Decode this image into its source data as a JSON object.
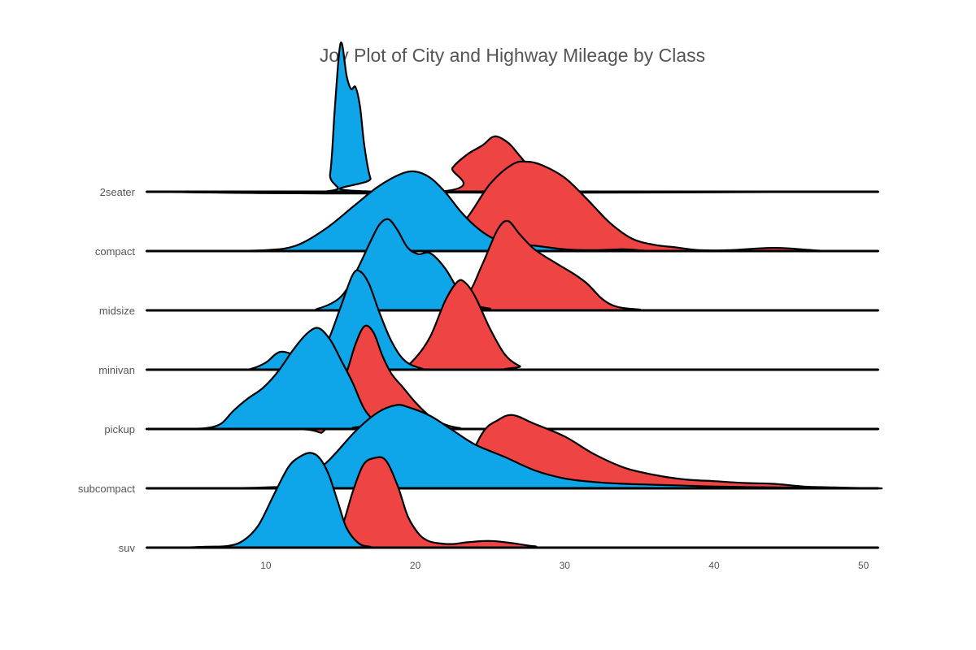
{
  "chart_data": {
    "type": "area",
    "title": "Joy Plot of City and Highway Mileage by Class",
    "xlabel": "",
    "ylabel": "",
    "xlim": [
      2,
      51
    ],
    "x_ticks": [
      10,
      20,
      30,
      40,
      50
    ],
    "grid": false,
    "legend": "none",
    "colors": {
      "city": "#0ea5e9",
      "highway": "#ef4444",
      "outline": "#000000"
    },
    "categories": [
      "2seater",
      "compact",
      "midsize",
      "minivan",
      "pickup",
      "subcompact",
      "suv"
    ],
    "series": [
      {
        "class": "2seater",
        "city": [
          [
            13.8,
            0
          ],
          [
            14.3,
            0.2
          ],
          [
            14.6,
            0.9
          ],
          [
            14.9,
            1.55
          ],
          [
            15.1,
            1.65
          ],
          [
            15.4,
            1.3
          ],
          [
            15.7,
            1.15
          ],
          [
            16.0,
            1.17
          ],
          [
            16.3,
            0.95
          ],
          [
            16.6,
            0.5
          ],
          [
            17.0,
            0.15
          ],
          [
            17.6,
            0
          ]
        ],
        "highway": [
          [
            21.5,
            0
          ],
          [
            22.5,
            0.27
          ],
          [
            23.5,
            0.42
          ],
          [
            24.5,
            0.52
          ],
          [
            25.3,
            0.62
          ],
          [
            26.2,
            0.55
          ],
          [
            27.0,
            0.4
          ],
          [
            28.0,
            0.2
          ],
          [
            29.0,
            0.06
          ],
          [
            30.0,
            0
          ]
        ]
      },
      {
        "class": "compact",
        "city": [
          [
            7.0,
            0
          ],
          [
            10.0,
            0.01
          ],
          [
            12.0,
            0.06
          ],
          [
            14.0,
            0.25
          ],
          [
            16.0,
            0.52
          ],
          [
            17.5,
            0.72
          ],
          [
            19.0,
            0.86
          ],
          [
            20.0,
            0.89
          ],
          [
            21.0,
            0.82
          ],
          [
            22.0,
            0.66
          ],
          [
            23.0,
            0.45
          ],
          [
            24.0,
            0.28
          ],
          [
            25.0,
            0.16
          ],
          [
            26.0,
            0.1
          ],
          [
            28.0,
            0.06
          ],
          [
            30.0,
            0.02
          ],
          [
            32.0,
            0.01
          ],
          [
            34.0,
            0.02
          ],
          [
            36.0,
            0.0
          ],
          [
            40.0,
            0
          ]
        ],
        "highway": [
          [
            18.0,
            0
          ],
          [
            20.0,
            0.02
          ],
          [
            22.0,
            0.12
          ],
          [
            23.5,
            0.38
          ],
          [
            25.0,
            0.75
          ],
          [
            26.5,
            0.97
          ],
          [
            27.5,
            1.0
          ],
          [
            28.5,
            0.96
          ],
          [
            30.0,
            0.82
          ],
          [
            31.5,
            0.58
          ],
          [
            33.0,
            0.32
          ],
          [
            34.5,
            0.14
          ],
          [
            36.0,
            0.07
          ],
          [
            37.5,
            0.04
          ],
          [
            39.0,
            0.01
          ],
          [
            41.0,
            0.01
          ],
          [
            43.0,
            0.03
          ],
          [
            44.0,
            0.035
          ],
          [
            45.0,
            0.03
          ],
          [
            47.0,
            0.005
          ],
          [
            48.0,
            0
          ]
        ]
      },
      {
        "class": "midsize",
        "city": [
          [
            12.0,
            0
          ],
          [
            13.5,
            0.02
          ],
          [
            15.0,
            0.15
          ],
          [
            16.0,
            0.42
          ],
          [
            17.0,
            0.77
          ],
          [
            17.6,
            0.96
          ],
          [
            18.2,
            1.02
          ],
          [
            18.8,
            0.9
          ],
          [
            19.5,
            0.7
          ],
          [
            20.2,
            0.63
          ],
          [
            21.0,
            0.64
          ],
          [
            22.0,
            0.47
          ],
          [
            23.0,
            0.2
          ],
          [
            24.0,
            0.06
          ],
          [
            25.0,
            0.02
          ],
          [
            26.0,
            0
          ]
        ],
        "highway": [
          [
            20.0,
            0
          ],
          [
            22.0,
            0.02
          ],
          [
            23.5,
            0.18
          ],
          [
            24.5,
            0.52
          ],
          [
            25.5,
            0.9
          ],
          [
            26.2,
            1.0
          ],
          [
            27.0,
            0.85
          ],
          [
            28.0,
            0.68
          ],
          [
            29.5,
            0.52
          ],
          [
            30.5,
            0.42
          ],
          [
            31.5,
            0.3
          ],
          [
            32.5,
            0.13
          ],
          [
            33.5,
            0.04
          ],
          [
            35.0,
            0.01
          ],
          [
            36.0,
            0
          ]
        ]
      },
      {
        "class": "minivan",
        "city": [
          [
            8.0,
            0
          ],
          [
            9.0,
            0.01
          ],
          [
            10.0,
            0.08
          ],
          [
            10.7,
            0.18
          ],
          [
            11.2,
            0.2
          ],
          [
            12.0,
            0.16
          ],
          [
            12.7,
            0.12
          ],
          [
            13.5,
            0.14
          ],
          [
            14.2,
            0.34
          ],
          [
            15.0,
            0.7
          ],
          [
            15.8,
            1.06
          ],
          [
            16.3,
            1.1
          ],
          [
            16.9,
            0.96
          ],
          [
            17.6,
            0.64
          ],
          [
            18.4,
            0.32
          ],
          [
            19.3,
            0.1
          ],
          [
            20.5,
            0.01
          ],
          [
            21.5,
            0
          ]
        ],
        "highway": [
          [
            17.0,
            0
          ],
          [
            19.0,
            0.01
          ],
          [
            20.0,
            0.13
          ],
          [
            21.0,
            0.37
          ],
          [
            22.0,
            0.77
          ],
          [
            22.8,
            0.98
          ],
          [
            23.3,
            0.98
          ],
          [
            24.0,
            0.82
          ],
          [
            25.0,
            0.46
          ],
          [
            26.0,
            0.17
          ],
          [
            27.0,
            0.04
          ],
          [
            28.0,
            0
          ]
        ]
      },
      {
        "class": "pickup",
        "city": [
          [
            4.5,
            0
          ],
          [
            6.0,
            0.01
          ],
          [
            7.0,
            0.06
          ],
          [
            7.8,
            0.2
          ],
          [
            8.7,
            0.33
          ],
          [
            9.8,
            0.46
          ],
          [
            10.8,
            0.64
          ],
          [
            11.8,
            0.88
          ],
          [
            12.7,
            1.06
          ],
          [
            13.5,
            1.13
          ],
          [
            14.3,
            1.0
          ],
          [
            15.0,
            0.78
          ],
          [
            15.8,
            0.52
          ],
          [
            16.6,
            0.22
          ],
          [
            17.5,
            0.06
          ],
          [
            18.5,
            0
          ]
        ],
        "highway": [
          [
            12.0,
            0
          ],
          [
            14.0,
            0.0
          ],
          [
            15.3,
            0.58
          ],
          [
            16.0,
            0.95
          ],
          [
            16.6,
            1.15
          ],
          [
            17.2,
            1.08
          ],
          [
            17.8,
            0.82
          ],
          [
            18.4,
            0.62
          ],
          [
            19.2,
            0.46
          ],
          [
            20.0,
            0.3
          ],
          [
            21.0,
            0.14
          ],
          [
            22.0,
            0.05
          ],
          [
            23.0,
            0.01
          ],
          [
            24.0,
            0
          ]
        ]
      },
      {
        "class": "subcompact",
        "city": [
          [
            6.0,
            0
          ],
          [
            10.0,
            0.01
          ],
          [
            12.0,
            0.05
          ],
          [
            14.0,
            0.28
          ],
          [
            16.0,
            0.64
          ],
          [
            17.5,
            0.85
          ],
          [
            18.7,
            0.93
          ],
          [
            19.5,
            0.91
          ],
          [
            21.0,
            0.81
          ],
          [
            22.5,
            0.65
          ],
          [
            24.0,
            0.49
          ],
          [
            26.0,
            0.35
          ],
          [
            28.0,
            0.2
          ],
          [
            30.0,
            0.11
          ],
          [
            32.0,
            0.07
          ],
          [
            34.0,
            0.05
          ],
          [
            36.0,
            0.04
          ],
          [
            38.0,
            0.03
          ],
          [
            40.0,
            0.02
          ],
          [
            44.0,
            0.01
          ],
          [
            48.0,
            0.005
          ],
          [
            51.0,
            0
          ]
        ],
        "highway": [
          [
            20.0,
            0
          ],
          [
            21.0,
            0.03
          ],
          [
            22.0,
            0.07
          ],
          [
            23.0,
            0.14
          ],
          [
            24.5,
            0.62
          ],
          [
            25.5,
            0.76
          ],
          [
            26.5,
            0.82
          ],
          [
            28.0,
            0.72
          ],
          [
            30.0,
            0.58
          ],
          [
            32.0,
            0.38
          ],
          [
            34.0,
            0.23
          ],
          [
            36.0,
            0.15
          ],
          [
            38.0,
            0.1
          ],
          [
            40.0,
            0.08
          ],
          [
            42.0,
            0.06
          ],
          [
            44.0,
            0.05
          ],
          [
            46.0,
            0.02
          ],
          [
            48.0,
            0.01
          ],
          [
            51.0,
            0
          ]
        ]
      },
      {
        "class": "suv",
        "city": [
          [
            4.0,
            0
          ],
          [
            6.0,
            0.01
          ],
          [
            7.5,
            0.02
          ],
          [
            8.5,
            0.08
          ],
          [
            9.5,
            0.25
          ],
          [
            10.5,
            0.58
          ],
          [
            11.5,
            0.9
          ],
          [
            12.3,
            1.02
          ],
          [
            13.0,
            1.06
          ],
          [
            13.6,
            1.0
          ],
          [
            14.2,
            0.82
          ],
          [
            14.8,
            0.52
          ],
          [
            15.4,
            0.22
          ],
          [
            16.2,
            0.05
          ],
          [
            17.0,
            0.01
          ],
          [
            18.0,
            0
          ]
        ],
        "highway": [
          [
            13.0,
            0
          ],
          [
            14.0,
            0.02
          ],
          [
            15.0,
            0.2
          ],
          [
            15.8,
            0.62
          ],
          [
            16.5,
            0.92
          ],
          [
            17.2,
            1.0
          ],
          [
            18.0,
            0.98
          ],
          [
            18.8,
            0.7
          ],
          [
            19.5,
            0.35
          ],
          [
            20.2,
            0.16
          ],
          [
            20.8,
            0.08
          ],
          [
            21.5,
            0.05
          ],
          [
            22.5,
            0.04
          ],
          [
            23.5,
            0.06
          ],
          [
            25.0,
            0.075
          ],
          [
            26.5,
            0.05
          ],
          [
            28.0,
            0.015
          ],
          [
            30.0,
            0
          ]
        ]
      }
    ]
  }
}
